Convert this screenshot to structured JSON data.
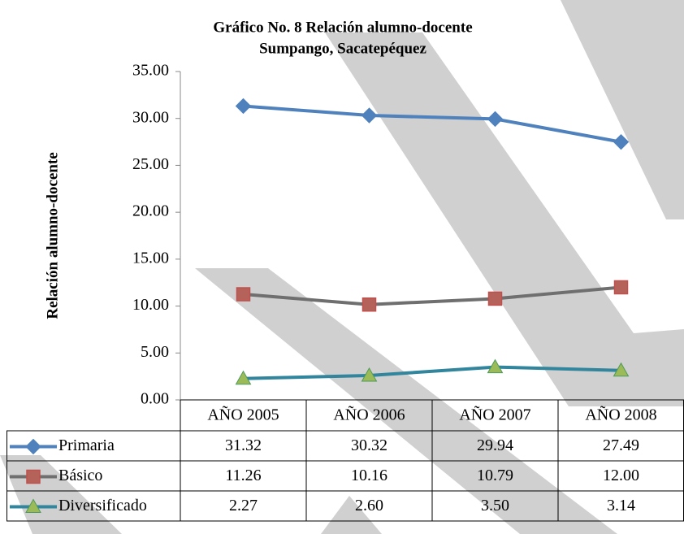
{
  "chart_data": {
    "type": "line",
    "title": "Gráfico No. 8 Relación alumno-docente",
    "subtitle": "Sumpango, Sacatepéquez",
    "y_label": "Relación alumno-docente",
    "categories": [
      "AÑO 2005",
      "AÑO 2006",
      "AÑO 2007",
      "AÑO 2008"
    ],
    "series": [
      {
        "name": "Primaria",
        "color": "#4f81bd",
        "marker": "diamond",
        "marker_fill": "#4f81bd",
        "values": [
          31.32,
          30.32,
          29.94,
          27.49
        ],
        "value_labels": [
          "31.32",
          "30.32",
          "29.94",
          "27.49"
        ]
      },
      {
        "name": "Básico",
        "color": "#6f6f6f",
        "marker": "square",
        "marker_fill": "#b5625a",
        "values": [
          11.26,
          10.16,
          10.79,
          12
        ],
        "value_labels": [
          "11.26",
          "10.16",
          "10.79",
          "12.00"
        ]
      },
      {
        "name": "Diversificado",
        "color": "#31859c",
        "marker": "triangle",
        "marker_fill": "#9bbb59",
        "values": [
          2.27,
          2.6,
          3.5,
          3.14
        ],
        "value_labels": [
          "2.27",
          "2.60",
          "3.50",
          "3.14"
        ]
      }
    ],
    "ylim": [
      0,
      35
    ],
    "yticks": [
      {
        "value": 0,
        "label": "0.00"
      },
      {
        "value": 5,
        "label": "5.00"
      },
      {
        "value": 10,
        "label": "10.00"
      },
      {
        "value": 15,
        "label": "15.00"
      },
      {
        "value": 20,
        "label": "20.00"
      },
      {
        "value": 25,
        "label": "25.00"
      },
      {
        "value": 30,
        "label": "30.00"
      },
      {
        "value": 35,
        "label": "35.00"
      }
    ]
  }
}
